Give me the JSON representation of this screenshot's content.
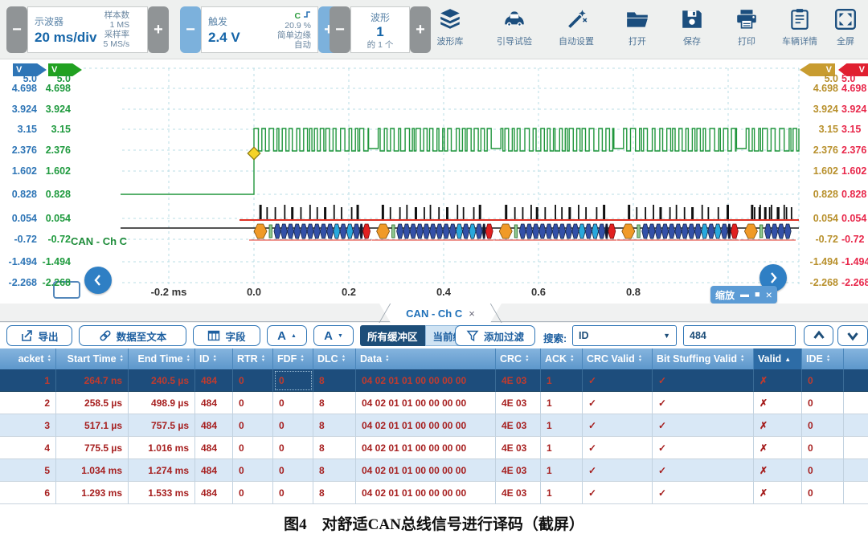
{
  "topbar": {
    "scope_group": {
      "minus": "−",
      "plus": "+",
      "label": "示波器",
      "value": "20 ms/div",
      "samples_label": "样本数",
      "samples_value": "1 MS",
      "rate_label": "采样率",
      "rate_value": "5 MS/s"
    },
    "trigger_group": {
      "minus": "−",
      "plus": "+",
      "label": "触发",
      "value": "2.4 V",
      "glyph": "C",
      "percent": "20.9 %",
      "mode": "简单边缘",
      "auto": "自动"
    },
    "waveform_group": {
      "minus": "−",
      "plus": "+",
      "label": "波形",
      "value": "1",
      "of_label": "的 1 个"
    },
    "icon_buttons": [
      {
        "label": "波形库"
      },
      {
        "label": "引导试验"
      },
      {
        "label": "自动设置"
      },
      {
        "label": "打开"
      },
      {
        "label": "保存"
      },
      {
        "label": "打印"
      },
      {
        "label": "车辆详情"
      },
      {
        "label": "全屏"
      }
    ]
  },
  "scope": {
    "channel_tabs": [
      "V",
      "V",
      "V",
      "V"
    ],
    "axis_values": [
      "5.0",
      "4.698",
      "3.924",
      "3.15",
      "2.376",
      "1.602",
      "0.828",
      "0.054",
      "-0.72",
      "-1.494",
      "-2.268"
    ],
    "time_labels": [
      "-0.2 ms",
      "0.0",
      "0.2",
      "0.4",
      "0.6",
      "0.8"
    ],
    "channel_label": "CAN - Ch C",
    "zoom_toolbar_label": "缩放",
    "zoom_buttons": [
      "▬",
      "■",
      "×"
    ],
    "colors": {
      "ch_blue": "#2e75b6",
      "ch_green": "#1f9a3e",
      "ch_gold": "#b8902c",
      "ch_red": "#e8274a",
      "trace": "#21963c",
      "decode_line": "#e03226",
      "glyph_navy": "#3350a8",
      "glyph_cyan": "#28a8dc",
      "glyph_orange": "#f09a28",
      "glyph_red": "#e02020"
    }
  },
  "panel_tab": {
    "label": "CAN - Ch C",
    "close": "×"
  },
  "table_toolbar": {
    "export": "导出",
    "data_to_text": "数据至文本",
    "fields": "字段",
    "font_up": "A",
    "font_up_tri": "▲",
    "font_down": "A",
    "font_down_tri": "▼",
    "all_buffers": "所有缓冲区",
    "current_buffer": "当前缓冲区",
    "add_filter": "添加过滤",
    "search_label": "搜索:",
    "search_selected": "ID",
    "search_arrow": "▼",
    "search_value": "484"
  },
  "table": {
    "columns": [
      "acket",
      "Start Time",
      "End Time",
      "ID",
      "RTR",
      "FDF",
      "DLC",
      "Data",
      "CRC",
      "ACK",
      "CRC Valid",
      "Bit Stuffing Valid",
      "Valid",
      "IDE"
    ],
    "sorted_column": "Valid",
    "sorted_arrow": "▲",
    "rows": [
      [
        "1",
        "264.7 ns",
        "240.5 µs",
        "484",
        "0",
        "0",
        "8",
        "04 02 01 01 00 00 00 00",
        "4E 03",
        "1",
        "✓",
        "✓",
        "✗",
        "0"
      ],
      [
        "2",
        "258.5 µs",
        "498.9 µs",
        "484",
        "0",
        "0",
        "8",
        "04 02 01 01 00 00 00 00",
        "4E 03",
        "1",
        "✓",
        "✓",
        "✗",
        "0"
      ],
      [
        "3",
        "517.1 µs",
        "757.5 µs",
        "484",
        "0",
        "0",
        "8",
        "04 02 01 01 00 00 00 00",
        "4E 03",
        "1",
        "✓",
        "✓",
        "✗",
        "0"
      ],
      [
        "4",
        "775.5 µs",
        "1.016 ms",
        "484",
        "0",
        "0",
        "8",
        "04 02 01 01 00 00 00 00",
        "4E 03",
        "1",
        "✓",
        "✓",
        "✗",
        "0"
      ],
      [
        "5",
        "1.034 ms",
        "1.274 ms",
        "484",
        "0",
        "0",
        "8",
        "04 02 01 01 00 00 00 00",
        "4E 03",
        "1",
        "✓",
        "✓",
        "✗",
        "0"
      ],
      [
        "6",
        "1.293 ms",
        "1.533 ms",
        "484",
        "0",
        "0",
        "8",
        "04 02 01 01 00 00 00 00",
        "4E 03",
        "1",
        "✓",
        "✓",
        "✗",
        "0"
      ]
    ]
  },
  "caption": "图4　对舒适CAN总线信号进行译码（截屏）"
}
